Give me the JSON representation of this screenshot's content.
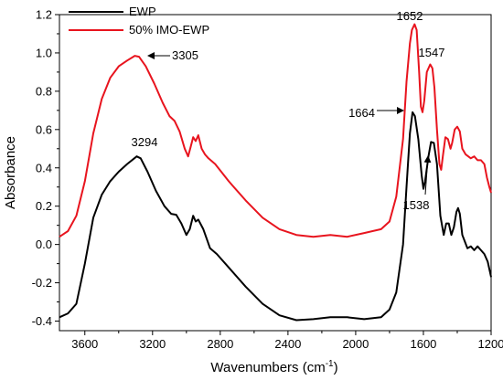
{
  "chart_data": {
    "type": "line",
    "xlabel": "Wavenumbers (cm",
    "xlabel_sup": "-1",
    "xlabel_end": ")",
    "ylabel": "Absorbance",
    "xlim": [
      3750,
      1200
    ],
    "ylim": [
      -0.45,
      1.2
    ],
    "x_reversed": true,
    "x_ticks": [
      3600,
      3200,
      2800,
      2400,
      2000,
      1600,
      1200
    ],
    "y_ticks": [
      -0.4,
      -0.2,
      0.0,
      0.2,
      0.4,
      0.6,
      0.8,
      1.0,
      1.2
    ],
    "x_tick_labels": [
      "3600",
      "3200",
      "2800",
      "2400",
      "2000",
      "1600",
      "1200"
    ],
    "y_tick_labels": [
      "-0.4",
      "-0.2",
      "0.0",
      "0.2",
      "0.4",
      "0.6",
      "0.8",
      "1.0",
      "1.2"
    ],
    "grid": false,
    "legend_position": "top-left",
    "series": [
      {
        "name": "EWP",
        "color": "#000000",
        "points": [
          [
            3750,
            -0.38
          ],
          [
            3700,
            -0.36
          ],
          [
            3650,
            -0.31
          ],
          [
            3600,
            -0.1
          ],
          [
            3550,
            0.14
          ],
          [
            3500,
            0.26
          ],
          [
            3450,
            0.33
          ],
          [
            3400,
            0.38
          ],
          [
            3350,
            0.42
          ],
          [
            3300,
            0.455
          ],
          [
            3294,
            0.46
          ],
          [
            3270,
            0.45
          ],
          [
            3230,
            0.38
          ],
          [
            3180,
            0.28
          ],
          [
            3130,
            0.2
          ],
          [
            3090,
            0.16
          ],
          [
            3060,
            0.155
          ],
          [
            3030,
            0.11
          ],
          [
            3000,
            0.05
          ],
          [
            2980,
            0.08
          ],
          [
            2960,
            0.15
          ],
          [
            2945,
            0.12
          ],
          [
            2930,
            0.13
          ],
          [
            2900,
            0.08
          ],
          [
            2880,
            0.03
          ],
          [
            2860,
            -0.02
          ],
          [
            2820,
            -0.05
          ],
          [
            2750,
            -0.12
          ],
          [
            2650,
            -0.22
          ],
          [
            2550,
            -0.31
          ],
          [
            2450,
            -0.37
          ],
          [
            2350,
            -0.395
          ],
          [
            2250,
            -0.39
          ],
          [
            2150,
            -0.38
          ],
          [
            2050,
            -0.38
          ],
          [
            1950,
            -0.39
          ],
          [
            1850,
            -0.38
          ],
          [
            1800,
            -0.34
          ],
          [
            1760,
            -0.25
          ],
          [
            1720,
            0.0
          ],
          [
            1700,
            0.3
          ],
          [
            1680,
            0.58
          ],
          [
            1664,
            0.69
          ],
          [
            1650,
            0.67
          ],
          [
            1630,
            0.55
          ],
          [
            1610,
            0.36
          ],
          [
            1600,
            0.29
          ],
          [
            1590,
            0.33
          ],
          [
            1570,
            0.46
          ],
          [
            1555,
            0.535
          ],
          [
            1538,
            0.53
          ],
          [
            1520,
            0.42
          ],
          [
            1500,
            0.15
          ],
          [
            1480,
            0.05
          ],
          [
            1465,
            0.11
          ],
          [
            1450,
            0.11
          ],
          [
            1435,
            0.05
          ],
          [
            1420,
            0.09
          ],
          [
            1405,
            0.17
          ],
          [
            1395,
            0.19
          ],
          [
            1385,
            0.16
          ],
          [
            1370,
            0.05
          ],
          [
            1340,
            -0.02
          ],
          [
            1320,
            -0.01
          ],
          [
            1300,
            -0.03
          ],
          [
            1280,
            -0.01
          ],
          [
            1260,
            -0.03
          ],
          [
            1240,
            -0.05
          ],
          [
            1220,
            -0.09
          ],
          [
            1200,
            -0.17
          ]
        ]
      },
      {
        "name": "50% IMO-EWP",
        "color": "#e8141e",
        "points": [
          [
            3750,
            0.04
          ],
          [
            3700,
            0.07
          ],
          [
            3650,
            0.15
          ],
          [
            3600,
            0.33
          ],
          [
            3550,
            0.58
          ],
          [
            3500,
            0.76
          ],
          [
            3450,
            0.87
          ],
          [
            3400,
            0.93
          ],
          [
            3350,
            0.96
          ],
          [
            3305,
            0.985
          ],
          [
            3280,
            0.98
          ],
          [
            3240,
            0.93
          ],
          [
            3190,
            0.84
          ],
          [
            3140,
            0.74
          ],
          [
            3100,
            0.67
          ],
          [
            3070,
            0.645
          ],
          [
            3040,
            0.59
          ],
          [
            3010,
            0.5
          ],
          [
            2990,
            0.46
          ],
          [
            2975,
            0.51
          ],
          [
            2960,
            0.56
          ],
          [
            2945,
            0.54
          ],
          [
            2930,
            0.57
          ],
          [
            2910,
            0.5
          ],
          [
            2890,
            0.47
          ],
          [
            2870,
            0.45
          ],
          [
            2830,
            0.42
          ],
          [
            2750,
            0.33
          ],
          [
            2650,
            0.23
          ],
          [
            2550,
            0.14
          ],
          [
            2450,
            0.08
          ],
          [
            2350,
            0.05
          ],
          [
            2250,
            0.04
          ],
          [
            2150,
            0.05
          ],
          [
            2050,
            0.04
          ],
          [
            1950,
            0.06
          ],
          [
            1850,
            0.08
          ],
          [
            1800,
            0.12
          ],
          [
            1760,
            0.25
          ],
          [
            1720,
            0.55
          ],
          [
            1700,
            0.85
          ],
          [
            1680,
            1.05
          ],
          [
            1668,
            1.12
          ],
          [
            1652,
            1.15
          ],
          [
            1640,
            1.12
          ],
          [
            1625,
            0.9
          ],
          [
            1615,
            0.72
          ],
          [
            1605,
            0.69
          ],
          [
            1595,
            0.75
          ],
          [
            1580,
            0.9
          ],
          [
            1560,
            0.94
          ],
          [
            1547,
            0.92
          ],
          [
            1535,
            0.82
          ],
          [
            1520,
            0.6
          ],
          [
            1505,
            0.42
          ],
          [
            1495,
            0.39
          ],
          [
            1485,
            0.46
          ],
          [
            1470,
            0.56
          ],
          [
            1455,
            0.55
          ],
          [
            1440,
            0.5
          ],
          [
            1430,
            0.53
          ],
          [
            1415,
            0.6
          ],
          [
            1400,
            0.615
          ],
          [
            1385,
            0.59
          ],
          [
            1370,
            0.5
          ],
          [
            1350,
            0.47
          ],
          [
            1320,
            0.45
          ],
          [
            1300,
            0.46
          ],
          [
            1280,
            0.44
          ],
          [
            1260,
            0.44
          ],
          [
            1240,
            0.42
          ],
          [
            1225,
            0.35
          ],
          [
            1210,
            0.3
          ],
          [
            1200,
            0.27
          ]
        ]
      }
    ],
    "annotations": [
      {
        "text": "3305",
        "x": 3305,
        "y": 0.985,
        "arrow": true
      },
      {
        "text": "3294",
        "x": 3294,
        "y": 0.46,
        "arrow": false
      },
      {
        "text": "1652",
        "x": 1652,
        "y": 1.15,
        "arrow": false
      },
      {
        "text": "1547",
        "x": 1547,
        "y": 0.92,
        "arrow": false
      },
      {
        "text": "1664",
        "x": 1664,
        "y": 0.69,
        "arrow": true
      },
      {
        "text": "1538",
        "x": 1538,
        "y": 0.53,
        "arrow": true
      }
    ]
  }
}
